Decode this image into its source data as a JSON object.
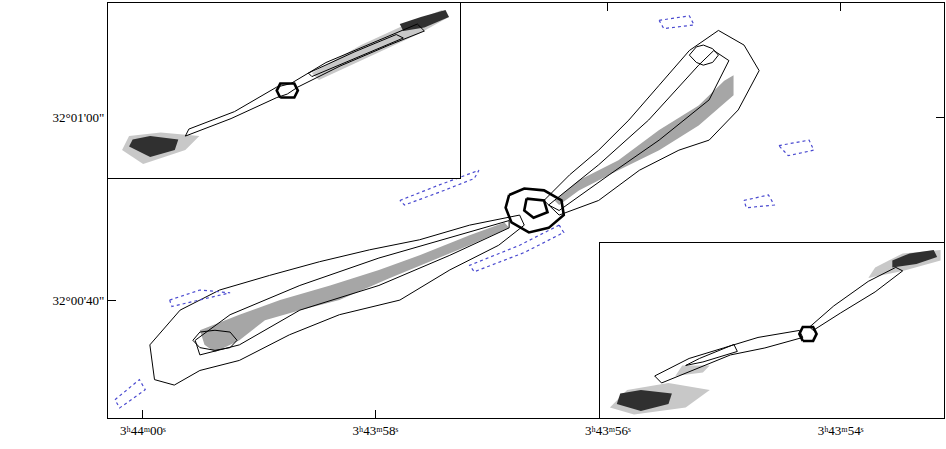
{
  "chart_data": [
    {
      "type": "contour",
      "grid": false,
      "xlim": [
        60.3,
        53.11
      ],
      "xticks": [
        {
          "value": 60,
          "label": "3ʰ44ᵐ00ˢ"
        },
        {
          "value": 58,
          "label": "3ʰ43ᵐ58ˢ"
        },
        {
          "value": 56,
          "label": "3ʰ43ᵐ56ˢ"
        },
        {
          "value": 54,
          "label": "3ʰ43ᵐ54ˢ"
        }
      ],
      "ylim": [
        27.1,
        72.5
      ],
      "yticks": [
        {
          "value": 60,
          "label": "32°01'00\""
        },
        {
          "value": 40,
          "label": "32°00'40\""
        }
      ],
      "series": [
        {
          "type": "area",
          "color": "#a6a6a6",
          "x": [
            59.47,
            59.51,
            59.17,
            58.82,
            58.39,
            57.97,
            57.62,
            57.19,
            56.89,
            56.85,
            57.19,
            57.54,
            57.88,
            58.31,
            58.65,
            58.95,
            59.17,
            59.38
          ],
          "y": [
            35.1,
            36.7,
            38.4,
            40.0,
            41.6,
            43.3,
            44.9,
            47.1,
            48.5,
            47.9,
            46.0,
            44.2,
            42.4,
            40.0,
            38.9,
            37.8,
            35.6,
            34.3
          ]
        },
        {
          "type": "area",
          "color": "#a6a6a6",
          "x": [
            56.46,
            56.25,
            55.91,
            55.56,
            55.22,
            55.0,
            54.92,
            54.92,
            55.22,
            55.56,
            55.91,
            56.25,
            56.42
          ],
          "y": [
            50.9,
            53.1,
            55.3,
            58.6,
            61.3,
            64.0,
            64.6,
            62.4,
            59.1,
            56.4,
            54.2,
            52.0,
            50.4
          ]
        },
        {
          "type": "line",
          "line_style": "solid",
          "color": "#000000",
          "x": [
            56.76,
            57.19,
            57.62,
            58.05,
            58.48,
            58.91,
            59.34,
            59.68,
            59.94,
            59.9,
            59.73,
            59.51,
            59.17,
            58.74,
            58.31,
            57.79,
            57.36,
            56.94,
            56.72
          ],
          "y": [
            49.3,
            48.2,
            46.6,
            45.5,
            44.2,
            42.7,
            41.1,
            38.9,
            35.1,
            31.3,
            30.7,
            32.3,
            33.4,
            36.2,
            38.4,
            40.0,
            43.3,
            46.0,
            48.2
          ]
        },
        {
          "type": "line",
          "line_style": "solid",
          "color": "#000000",
          "x": [
            56.55,
            56.33,
            56.08,
            55.82,
            55.56,
            55.3,
            55.05,
            54.83,
            54.7,
            54.88,
            55.13,
            55.39,
            55.73,
            56.08,
            56.42
          ],
          "y": [
            50.9,
            53.7,
            56.4,
            59.7,
            63.5,
            67.3,
            69.5,
            67.9,
            65.1,
            60.8,
            57.5,
            56.4,
            54.2,
            50.9,
            49.3
          ]
        },
        {
          "type": "line",
          "line_style": "solid",
          "color": "#000000",
          "x": [
            56.85,
            57.36,
            57.97,
            58.65,
            59.25,
            59.55,
            59.51,
            59.17,
            58.65,
            57.97,
            57.36,
            56.85
          ],
          "y": [
            48.7,
            46.8,
            44.6,
            41.6,
            38.4,
            35.6,
            34.0,
            35.1,
            38.9,
            41.6,
            44.9,
            47.9
          ]
        },
        {
          "type": "line",
          "line_style": "solid",
          "color": "#000000",
          "x": [
            56.51,
            56.08,
            55.65,
            55.22,
            55.09,
            54.96,
            55.13,
            55.56,
            55.99,
            56.42
          ],
          "y": [
            50.4,
            54.8,
            59.7,
            65.7,
            67.3,
            66.2,
            61.9,
            57.5,
            53.7,
            49.8
          ]
        },
        {
          "type": "line",
          "line_style": "solid",
          "color": "#000000",
          "x": [
            59.57,
            59.51,
            59.38,
            59.25,
            59.19,
            59.25,
            59.38,
            59.51
          ],
          "y": [
            35.6,
            36.5,
            36.7,
            36.5,
            35.6,
            34.8,
            34.5,
            34.8
          ]
        },
        {
          "type": "line",
          "line_style": "solid",
          "color": "#000000",
          "x": [
            55.3,
            55.24,
            55.18,
            55.1,
            55.05,
            55.1,
            55.18,
            55.24
          ],
          "y": [
            66.8,
            67.7,
            67.9,
            67.5,
            66.8,
            66.0,
            65.7,
            66.0
          ]
        },
        {
          "type": "line",
          "line_style": "bold",
          "color": "#000000",
          "x": [
            56.85,
            56.72,
            56.55,
            56.4,
            56.38,
            56.51,
            56.68,
            56.83,
            56.88
          ],
          "y": [
            51.5,
            52.2,
            52.0,
            50.9,
            49.3,
            47.9,
            47.4,
            48.5,
            50.1
          ]
        },
        {
          "type": "line",
          "line_style": "bold",
          "color": "#000000",
          "x": [
            56.7,
            56.55,
            56.52,
            56.64,
            56.72
          ],
          "y": [
            51.1,
            50.9,
            49.6,
            49.0,
            49.8
          ]
        },
        {
          "type": "line",
          "line_style": "dotted",
          "color": "#4a4ad0",
          "x": [
            57.79,
            57.45,
            57.11,
            57.15,
            57.45,
            57.75
          ],
          "y": [
            50.9,
            52.6,
            54.2,
            53.3,
            51.8,
            50.4
          ]
        },
        {
          "type": "line",
          "line_style": "dotted",
          "color": "#4a4ad0",
          "x": [
            56.42,
            56.76,
            57.19,
            57.15,
            56.72,
            56.38
          ],
          "y": [
            48.2,
            46.0,
            43.8,
            43.1,
            45.2,
            47.4
          ]
        },
        {
          "type": "line",
          "line_style": "dotted",
          "color": "#4a4ad0",
          "x": [
            59.77,
            59.51,
            59.25,
            59.51,
            59.75
          ],
          "y": [
            40.0,
            41.1,
            40.8,
            40.0,
            39.3
          ]
        },
        {
          "type": "line",
          "line_style": "dotted",
          "color": "#4a4ad0",
          "x": [
            54.53,
            54.27,
            54.23,
            54.45
          ],
          "y": [
            56.9,
            57.5,
            56.4,
            55.8
          ]
        },
        {
          "type": "line",
          "line_style": "dotted",
          "color": "#4a4ad0",
          "x": [
            55.56,
            55.3,
            55.26,
            55.52
          ],
          "y": [
            70.6,
            71.1,
            70.1,
            69.7
          ]
        },
        {
          "type": "line",
          "line_style": "dotted",
          "color": "#4a4ad0",
          "x": [
            54.83,
            54.62,
            54.57,
            54.81
          ],
          "y": [
            50.9,
            51.5,
            50.4,
            50.1
          ]
        },
        {
          "type": "line",
          "line_style": "dotted",
          "color": "#4a4ad0",
          "x": [
            60.24,
            60.03,
            59.98,
            60.2
          ],
          "y": [
            29.1,
            31.3,
            30.2,
            28.2
          ]
        }
      ]
    },
    {
      "type": "contour",
      "tick_labels": false,
      "grid": false,
      "xlim": [
        0,
        100
      ],
      "ylim": [
        0,
        50
      ],
      "series": [
        {
          "type": "area",
          "color": "#c8c8c8",
          "x": [
            60,
            75,
            88,
            97,
            95,
            85,
            72,
            58
          ],
          "y": [
            28,
            35,
            41,
            46,
            48,
            44,
            38,
            30
          ]
        },
        {
          "type": "area",
          "color": "#c8c8c8",
          "x": [
            4,
            10,
            22,
            26,
            15,
            6
          ],
          "y": [
            8,
            4,
            8,
            12,
            13,
            12
          ]
        },
        {
          "type": "area",
          "color": "#303030",
          "x": [
            6,
            12,
            19,
            20,
            12,
            7
          ],
          "y": [
            9,
            6,
            8,
            11,
            12,
            11
          ]
        },
        {
          "type": "area",
          "color": "#303030",
          "x": [
            84,
            90,
            97,
            96,
            89,
            83
          ],
          "y": [
            42,
            43,
            46,
            48,
            46,
            44
          ]
        },
        {
          "type": "line",
          "line_style": "solid",
          "color": "#000000",
          "x": [
            22,
            35,
            48,
            51,
            54,
            66,
            80,
            90,
            88,
            76,
            62,
            52,
            48,
            36,
            23
          ],
          "y": [
            12,
            17,
            23,
            24,
            26,
            32,
            38,
            42,
            44,
            39,
            33,
            27,
            26,
            19,
            14
          ]
        },
        {
          "type": "line",
          "line_style": "solid",
          "color": "#000000",
          "x": [
            58,
            72,
            84,
            82,
            70,
            57
          ],
          "y": [
            29,
            35,
            40,
            41,
            36,
            30
          ]
        },
        {
          "type": "line",
          "line_style": "bold",
          "color": "#000000",
          "x": [
            49,
            53,
            54,
            53,
            49,
            48
          ],
          "y": [
            23,
            23,
            25,
            27,
            27,
            25
          ]
        }
      ]
    },
    {
      "type": "contour",
      "tick_labels": false,
      "grid": false,
      "xlim": [
        0,
        100
      ],
      "ylim": [
        0,
        50
      ],
      "series": [
        {
          "type": "area",
          "color": "#c8c8c8",
          "x": [
            3,
            10,
            25,
            32,
            20,
            8
          ],
          "y": [
            3,
            1,
            3,
            8,
            10,
            8
          ]
        },
        {
          "type": "area",
          "color": "#c8c8c8",
          "x": [
            22,
            30,
            32,
            24
          ],
          "y": [
            12,
            13,
            15,
            15
          ]
        },
        {
          "type": "area",
          "color": "#303030",
          "x": [
            5,
            12,
            20,
            21,
            12,
            6
          ],
          "y": [
            4,
            2,
            4,
            7,
            8,
            7
          ]
        },
        {
          "type": "area",
          "color": "#c8c8c8",
          "x": [
            78,
            88,
            99,
            99,
            88,
            80
          ],
          "y": [
            40,
            42,
            45,
            48,
            47,
            43
          ]
        },
        {
          "type": "area",
          "color": "#303030",
          "x": [
            85,
            92,
            98,
            97,
            90,
            85
          ],
          "y": [
            43,
            44,
            46,
            48,
            47,
            45
          ]
        },
        {
          "type": "line",
          "line_style": "solid",
          "color": "#000000",
          "x": [
            59,
            48,
            38,
            28,
            18,
            16,
            26,
            36,
            46,
            58
          ],
          "y": [
            23,
            20,
            18,
            14,
            10,
            12,
            17,
            20,
            23,
            25
          ]
        },
        {
          "type": "line",
          "line_style": "solid",
          "color": "#000000",
          "x": [
            40,
            30,
            25,
            29,
            39
          ],
          "y": [
            19,
            16,
            15,
            17,
            21
          ]
        },
        {
          "type": "line",
          "line_style": "solid",
          "color": "#000000",
          "x": [
            62,
            70,
            80,
            88,
            86,
            78,
            68,
            61
          ],
          "y": [
            25,
            30,
            36,
            42,
            43,
            39,
            32,
            26
          ]
        },
        {
          "type": "line",
          "line_style": "bold",
          "color": "#000000",
          "x": [
            59,
            62,
            63,
            62,
            59,
            58
          ],
          "y": [
            22,
            22,
            24,
            26,
            26,
            24
          ]
        }
      ]
    }
  ]
}
